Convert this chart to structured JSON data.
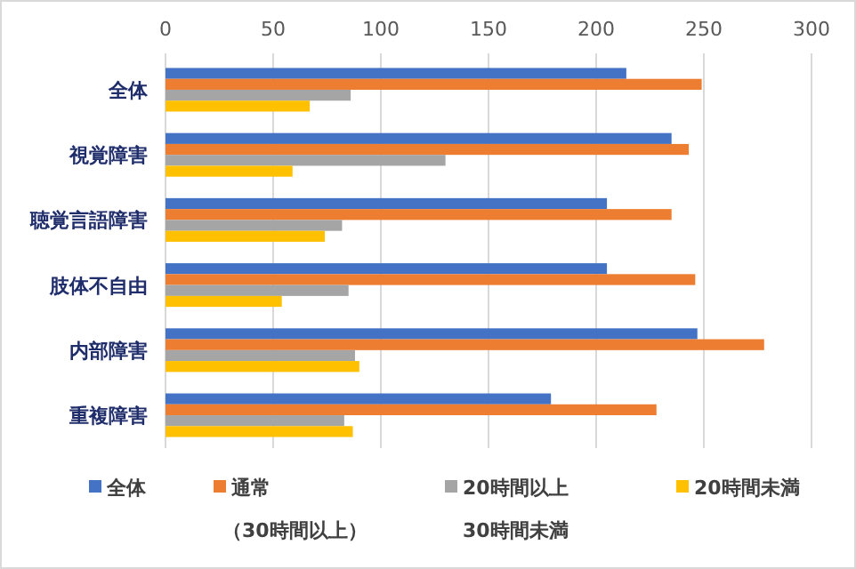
{
  "chart_data": {
    "type": "bar",
    "orientation": "horizontal",
    "categories": [
      "全体",
      "視覚障害",
      "聴覚言語障害",
      "肢体不自由",
      "内部障害",
      "重複障害"
    ],
    "series": [
      {
        "name": "全体",
        "color": "#4472c4",
        "values": [
          214,
          235,
          205,
          205,
          247,
          179
        ]
      },
      {
        "name": "通常（30時間以上）",
        "color": "#ed7d31",
        "values": [
          249,
          243,
          235,
          246,
          278,
          228
        ]
      },
      {
        "name": "20時間以上30時間未満",
        "color": "#a5a5a5",
        "values": [
          86,
          130,
          82,
          85,
          88,
          83
        ]
      },
      {
        "name": "20時間未満",
        "color": "#ffc000",
        "values": [
          67,
          59,
          74,
          54,
          90,
          87
        ]
      }
    ],
    "xlim": [
      0,
      300
    ],
    "xticks": [
      0,
      50,
      100,
      150,
      200,
      250,
      300
    ],
    "grid": "x",
    "legend": "bottom"
  }
}
